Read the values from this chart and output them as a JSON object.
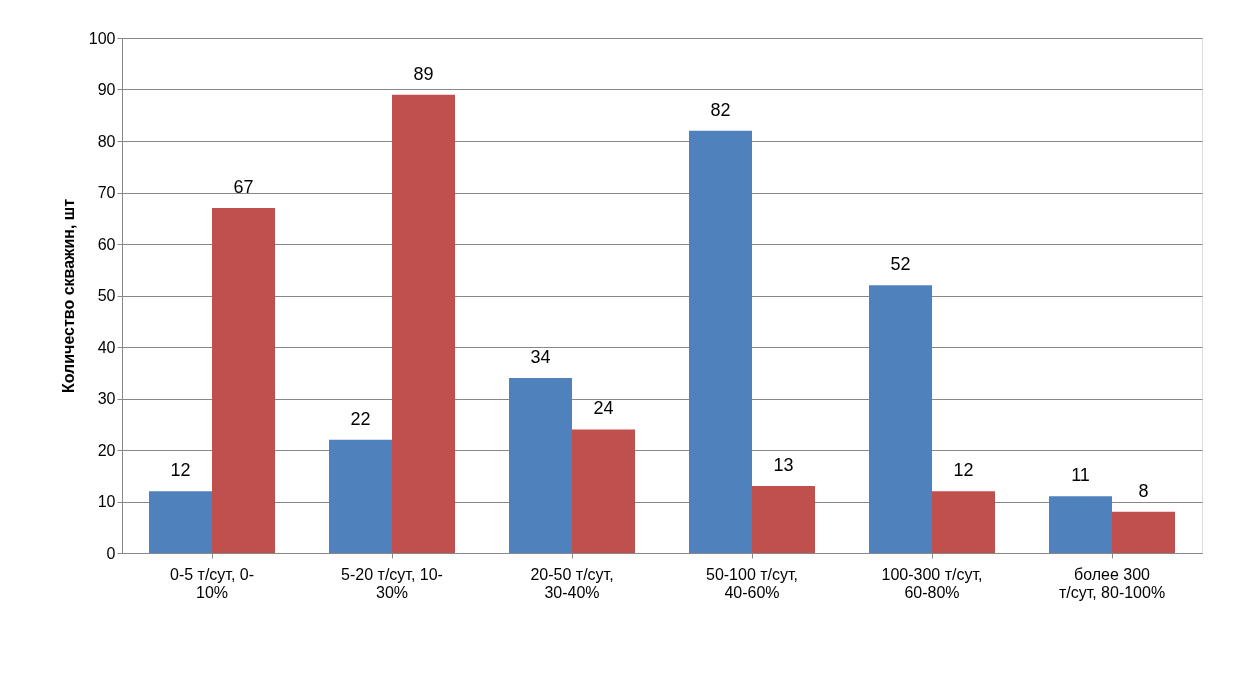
{
  "chart_data": {
    "type": "bar",
    "ylabel": "Количество скважин, шт",
    "categories": [
      "0-5 т/сут, 0-\n10%",
      "5-20 т/сут, 10-\n30%",
      "20-50 т/сут,\n30-40%",
      "50-100 т/сут,\n40-60%",
      "100-300 т/сут,\n60-80%",
      "более 300\nт/сут, 80-100%"
    ],
    "series": [
      {
        "color": "#4f81bd",
        "values": [
          12,
          22,
          34,
          82,
          52,
          11
        ]
      },
      {
        "color": "#c0504d",
        "values": [
          67,
          89,
          24,
          13,
          12,
          8
        ]
      }
    ],
    "ylim": [
      0,
      100
    ],
    "yticks": [
      0,
      10,
      20,
      30,
      40,
      50,
      60,
      70,
      80,
      90,
      100
    ],
    "grid": "y",
    "data_labels": true
  }
}
